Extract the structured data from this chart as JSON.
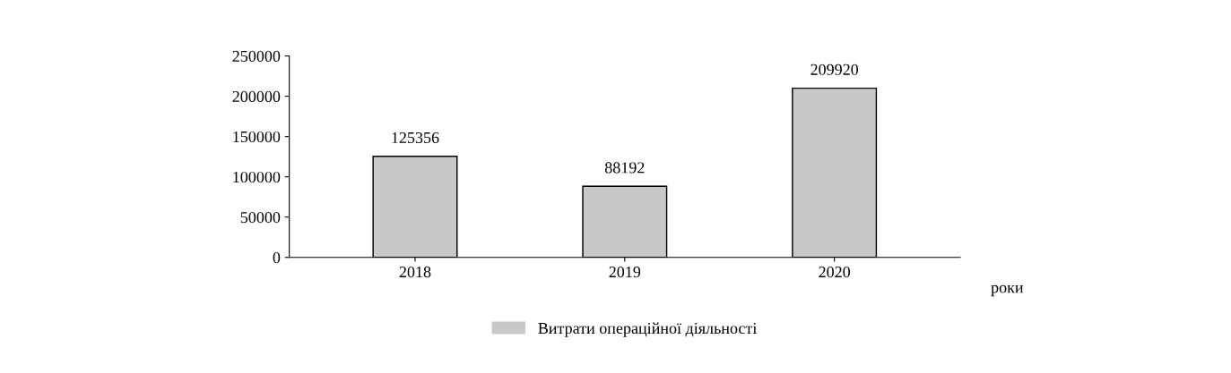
{
  "chart_data": {
    "type": "bar",
    "categories": [
      "2018",
      "2019",
      "2020"
    ],
    "series": [
      {
        "name": "Витрати операційної діяльності",
        "color": "#c8c8c8",
        "values": [
          125356,
          88192,
          209920
        ]
      }
    ],
    "xlabel": "роки",
    "ylim": [
      0,
      250000
    ],
    "yticks": [
      0,
      50000,
      100000,
      150000,
      200000,
      250000
    ],
    "data_labels": true,
    "grid": false,
    "legend": "bottom"
  }
}
